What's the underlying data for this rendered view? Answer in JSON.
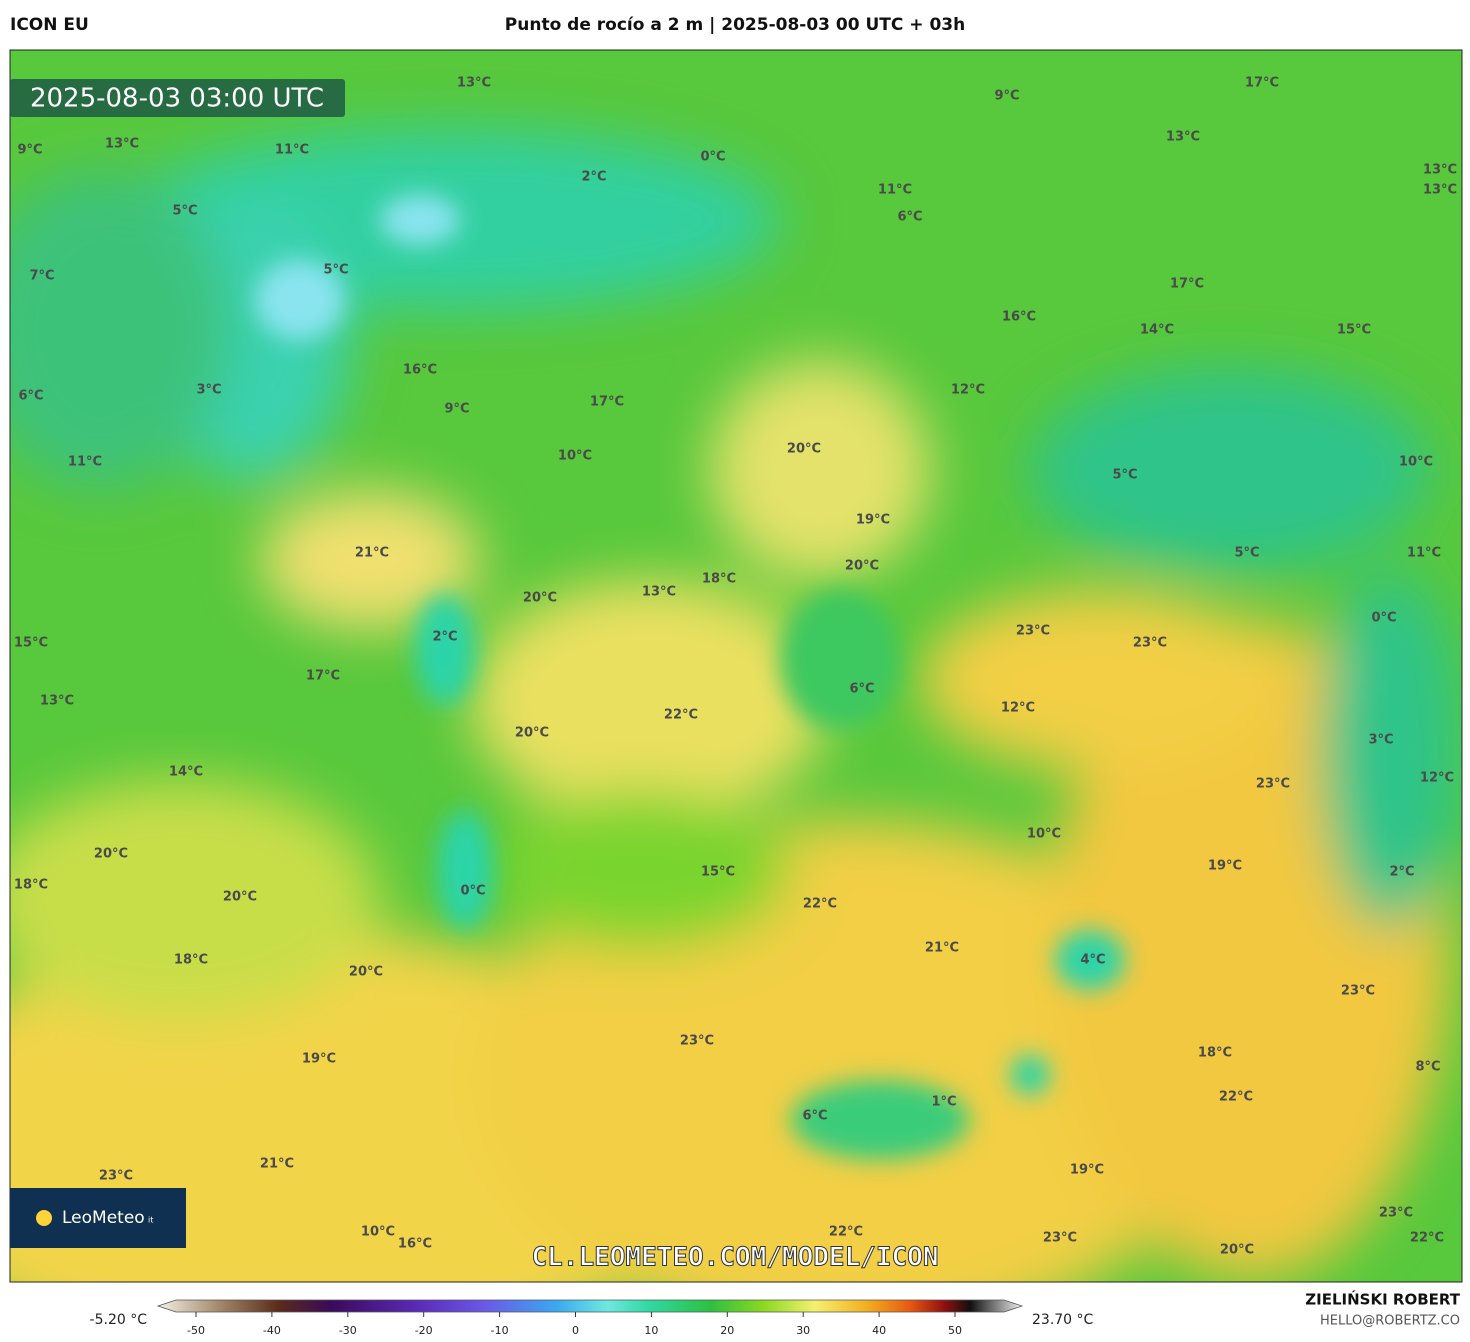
{
  "header": {
    "model": "ICON EU",
    "title": "Punto de rocío a 2 m | 2025-08-03 00 UTC + 03h"
  },
  "map": {
    "timestamp": "2025-08-03 03:00 UTC",
    "watermark": "CL.LEOMETEO.COM/MODEL/ICON",
    "logo": {
      "name": "LeoMeteo",
      "suffix": "it"
    },
    "labels": [
      "13°C",
      "9°C",
      "17°C",
      "9°C",
      "13°C",
      "11°C",
      "0°C",
      "2°C",
      "13°C",
      "13°C",
      "13°C",
      "11°C",
      "5°C",
      "6°C",
      "5°C",
      "7°C",
      "17°C",
      "16°C",
      "14°C",
      "15°C",
      "16°C",
      "3°C",
      "12°C",
      "6°C",
      "9°C",
      "17°C",
      "20°C",
      "10°C",
      "11°C",
      "10°C",
      "5°C",
      "19°C",
      "21°C",
      "5°C",
      "11°C",
      "20°C",
      "18°C",
      "13°C",
      "20°C",
      "23°C",
      "23°C",
      "2°C",
      "0°C",
      "15°C",
      "17°C",
      "6°C",
      "12°C",
      "13°C",
      "22°C",
      "20°C",
      "3°C",
      "14°C",
      "12°C",
      "23°C",
      "10°C",
      "20°C",
      "19°C",
      "15°C",
      "18°C",
      "0°C",
      "2°C",
      "20°C",
      "22°C",
      "21°C",
      "18°C",
      "4°C",
      "20°C",
      "23°C",
      "23°C",
      "18°C",
      "19°C",
      "8°C",
      "22°C",
      "1°C",
      "6°C",
      "23°C",
      "21°C",
      "19°C",
      "23°C",
      "22°C",
      "23°C",
      "22°C",
      "10°C",
      "16°C",
      "20°C"
    ]
  },
  "colorbar": {
    "min_label": "-5.20 °C",
    "max_label": "23.70 °C",
    "ticks": [
      -50,
      -40,
      -30,
      -20,
      -10,
      0,
      10,
      20,
      30,
      40,
      50
    ]
  },
  "footer": {
    "author": "ZIELIŃSKI ROBERT",
    "email": "HELLO@ROBERTZ.CO"
  }
}
